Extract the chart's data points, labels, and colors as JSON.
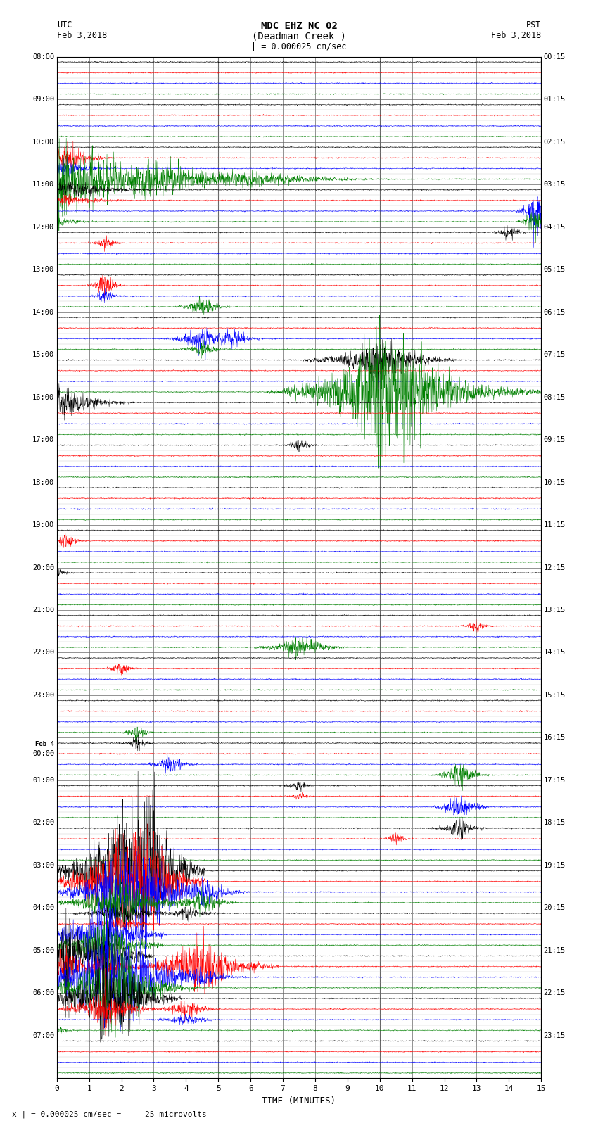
{
  "title_line1": "MDC EHZ NC 02",
  "title_line2": "(Deadman Creek )",
  "title_line3": "| = 0.000025 cm/sec",
  "utc_label": "UTC",
  "utc_date": "Feb 3,2018",
  "pst_label": "PST",
  "pst_date": "Feb 3,2018",
  "xlabel": "TIME (MINUTES)",
  "footnote": "x | = 0.000025 cm/sec =     25 microvolts",
  "x_min": 0,
  "x_max": 15,
  "background_color": "#ffffff",
  "n_rows": 96,
  "colors_cycle": [
    "black",
    "red",
    "blue",
    "green"
  ],
  "left_utc_labels": {
    "0": "08:00",
    "4": "09:00",
    "8": "10:00",
    "12": "11:00",
    "16": "12:00",
    "20": "13:00",
    "24": "14:00",
    "28": "15:00",
    "32": "16:00",
    "36": "17:00",
    "40": "18:00",
    "44": "19:00",
    "48": "20:00",
    "52": "21:00",
    "56": "22:00",
    "60": "23:00",
    "64": "Feb 4\n00:00",
    "68": "01:00",
    "72": "02:00",
    "76": "03:00",
    "80": "04:00",
    "84": "05:00",
    "88": "06:00",
    "92": "07:00"
  },
  "right_pst_labels": {
    "0": "00:15",
    "4": "01:15",
    "8": "02:15",
    "12": "03:15",
    "16": "04:15",
    "20": "05:15",
    "24": "06:15",
    "28": "07:15",
    "32": "08:15",
    "36": "09:15",
    "40": "10:15",
    "44": "11:15",
    "48": "12:15",
    "52": "13:15",
    "56": "14:15",
    "60": "15:15",
    "64": "16:15",
    "68": "17:15",
    "72": "18:15",
    "76": "19:15",
    "80": "20:15",
    "84": "21:15",
    "88": "22:15",
    "92": "23:15"
  }
}
